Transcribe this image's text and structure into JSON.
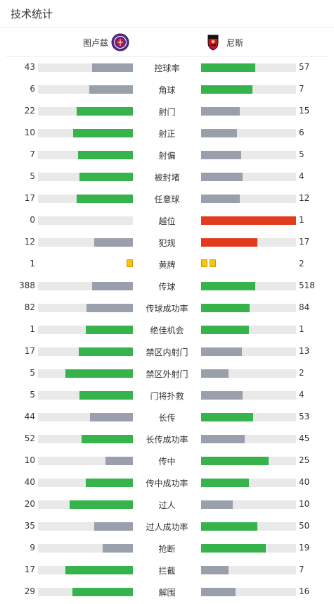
{
  "header": {
    "title": "技术统计"
  },
  "teams": {
    "home": "图卢兹",
    "away": "尼斯"
  },
  "colors": {
    "gray": "#9aa0ab",
    "green": "#36b34a",
    "red": "#e23a1c",
    "track": "#e9e9e9",
    "yellow": "#f5c518"
  },
  "stats": [
    {
      "label": "控球率",
      "home": "43",
      "away": "57",
      "home_pct": 43,
      "away_pct": 57,
      "home_color": "gray",
      "away_color": "green"
    },
    {
      "label": "角球",
      "home": "6",
      "away": "7",
      "home_pct": 46,
      "away_pct": 54,
      "home_color": "gray",
      "away_color": "green"
    },
    {
      "label": "射门",
      "home": "22",
      "away": "15",
      "home_pct": 59,
      "away_pct": 41,
      "home_color": "green",
      "away_color": "gray"
    },
    {
      "label": "射正",
      "home": "10",
      "away": "6",
      "home_pct": 63,
      "away_pct": 38,
      "home_color": "green",
      "away_color": "gray"
    },
    {
      "label": "射偏",
      "home": "7",
      "away": "5",
      "home_pct": 58,
      "away_pct": 42,
      "home_color": "green",
      "away_color": "gray"
    },
    {
      "label": "被封堵",
      "home": "5",
      "away": "4",
      "home_pct": 56,
      "away_pct": 44,
      "home_color": "green",
      "away_color": "gray"
    },
    {
      "label": "任意球",
      "home": "17",
      "away": "12",
      "home_pct": 59,
      "away_pct": 41,
      "home_color": "green",
      "away_color": "gray"
    },
    {
      "label": "越位",
      "home": "0",
      "away": "1",
      "home_pct": 0,
      "away_pct": 100,
      "home_color": "gray",
      "away_color": "red"
    },
    {
      "label": "犯规",
      "home": "12",
      "away": "17",
      "home_pct": 41,
      "away_pct": 59,
      "home_color": "gray",
      "away_color": "red"
    },
    {
      "label": "黄牌",
      "home": "1",
      "away": "2",
      "cards": true,
      "home_cards": 1,
      "away_cards": 2
    },
    {
      "label": "传球",
      "home": "388",
      "away": "518",
      "home_pct": 43,
      "away_pct": 57,
      "home_color": "gray",
      "away_color": "green"
    },
    {
      "label": "传球成功率",
      "home": "82",
      "away": "84",
      "home_pct": 49,
      "away_pct": 51,
      "home_color": "gray",
      "away_color": "green"
    },
    {
      "label": "绝佳机会",
      "home": "1",
      "away": "1",
      "home_pct": 50,
      "away_pct": 50,
      "home_color": "green",
      "away_color": "green"
    },
    {
      "label": "禁区内射门",
      "home": "17",
      "away": "13",
      "home_pct": 57,
      "away_pct": 43,
      "home_color": "green",
      "away_color": "gray"
    },
    {
      "label": "禁区外射门",
      "home": "5",
      "away": "2",
      "home_pct": 71,
      "away_pct": 29,
      "home_color": "green",
      "away_color": "gray"
    },
    {
      "label": "门将扑救",
      "home": "5",
      "away": "4",
      "home_pct": 56,
      "away_pct": 44,
      "home_color": "green",
      "away_color": "gray"
    },
    {
      "label": "长传",
      "home": "44",
      "away": "53",
      "home_pct": 45,
      "away_pct": 55,
      "home_color": "gray",
      "away_color": "green"
    },
    {
      "label": "长传成功率",
      "home": "52",
      "away": "45",
      "home_pct": 54,
      "away_pct": 46,
      "home_color": "green",
      "away_color": "gray"
    },
    {
      "label": "传中",
      "home": "10",
      "away": "25",
      "home_pct": 29,
      "away_pct": 71,
      "home_color": "gray",
      "away_color": "green"
    },
    {
      "label": "传中成功率",
      "home": "40",
      "away": "40",
      "home_pct": 50,
      "away_pct": 50,
      "home_color": "green",
      "away_color": "green"
    },
    {
      "label": "过人",
      "home": "20",
      "away": "10",
      "home_pct": 67,
      "away_pct": 33,
      "home_color": "green",
      "away_color": "gray"
    },
    {
      "label": "过人成功率",
      "home": "35",
      "away": "50",
      "home_pct": 41,
      "away_pct": 59,
      "home_color": "gray",
      "away_color": "green"
    },
    {
      "label": "抢断",
      "home": "9",
      "away": "19",
      "home_pct": 32,
      "away_pct": 68,
      "home_color": "gray",
      "away_color": "green"
    },
    {
      "label": "拦截",
      "home": "17",
      "away": "7",
      "home_pct": 71,
      "away_pct": 29,
      "home_color": "green",
      "away_color": "gray"
    },
    {
      "label": "解围",
      "home": "29",
      "away": "16",
      "home_pct": 64,
      "away_pct": 36,
      "home_color": "green",
      "away_color": "gray"
    }
  ]
}
